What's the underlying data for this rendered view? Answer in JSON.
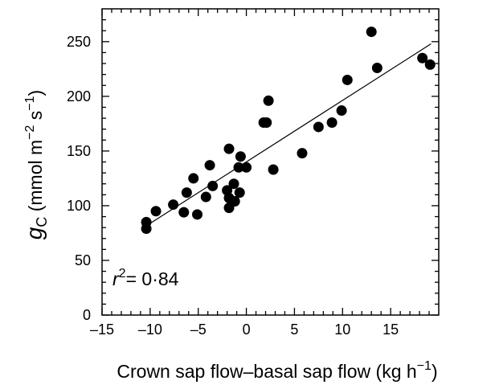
{
  "chart_data": {
    "type": "scatter",
    "x_label": [
      "Crown sap flow–basal sap flow (kg h",
      "−1",
      ")"
    ],
    "y_label": [
      "g",
      "C",
      " (mmol m",
      "−2",
      " s",
      "−1",
      ")"
    ],
    "annotation": [
      "r",
      "2",
      "= 0·84"
    ],
    "color": "#000000",
    "x": [
      -10.4,
      -10.4,
      -9.4,
      -7.6,
      -6.5,
      -6.2,
      -5.5,
      -5.1,
      -4.2,
      -3.8,
      -3.5,
      -2.0,
      -1.8,
      -1.8,
      -1.8,
      -1.3,
      -1.2,
      -0.8,
      -0.7,
      -0.6,
      0.0,
      1.8,
      2.1,
      2.3,
      2.8,
      5.8,
      7.5,
      8.9,
      9.9,
      10.5,
      13.0,
      13.6,
      18.3,
      19.1
    ],
    "values": [
      85,
      79,
      95,
      101,
      94,
      112,
      125,
      92,
      108,
      137,
      118,
      114,
      152,
      107,
      98,
      120,
      104,
      135,
      112,
      145,
      135,
      176,
      176,
      196,
      133,
      148,
      172,
      176,
      187,
      215,
      259,
      226,
      235,
      229
    ],
    "fit_line": {
      "x": [
        -10.5,
        19.2
      ],
      "y": [
        81,
        248
      ]
    },
    "xlim": [
      -15,
      20
    ],
    "ylim": [
      0,
      280
    ],
    "xticks": [
      {
        "value": -15,
        "label": "–15"
      },
      {
        "value": -10,
        "label": "–10"
      },
      {
        "value": -5,
        "label": "–5"
      },
      0,
      5,
      10,
      15
    ],
    "yticks": [
      0,
      50,
      100,
      150,
      200,
      250
    ],
    "x_minor_ticks": [
      -14,
      -13,
      -12,
      -11,
      -9,
      -8,
      -7,
      -6,
      -4,
      -3,
      -2,
      -1,
      1,
      2,
      3,
      4,
      6,
      7,
      8,
      9,
      11,
      12,
      13,
      14,
      16,
      17,
      18,
      19
    ],
    "y_minor_ticks": [
      10,
      20,
      30,
      40,
      60,
      70,
      80,
      90,
      110,
      120,
      130,
      140,
      160,
      170,
      180,
      190,
      210,
      220,
      230,
      240,
      260,
      270
    ]
  }
}
